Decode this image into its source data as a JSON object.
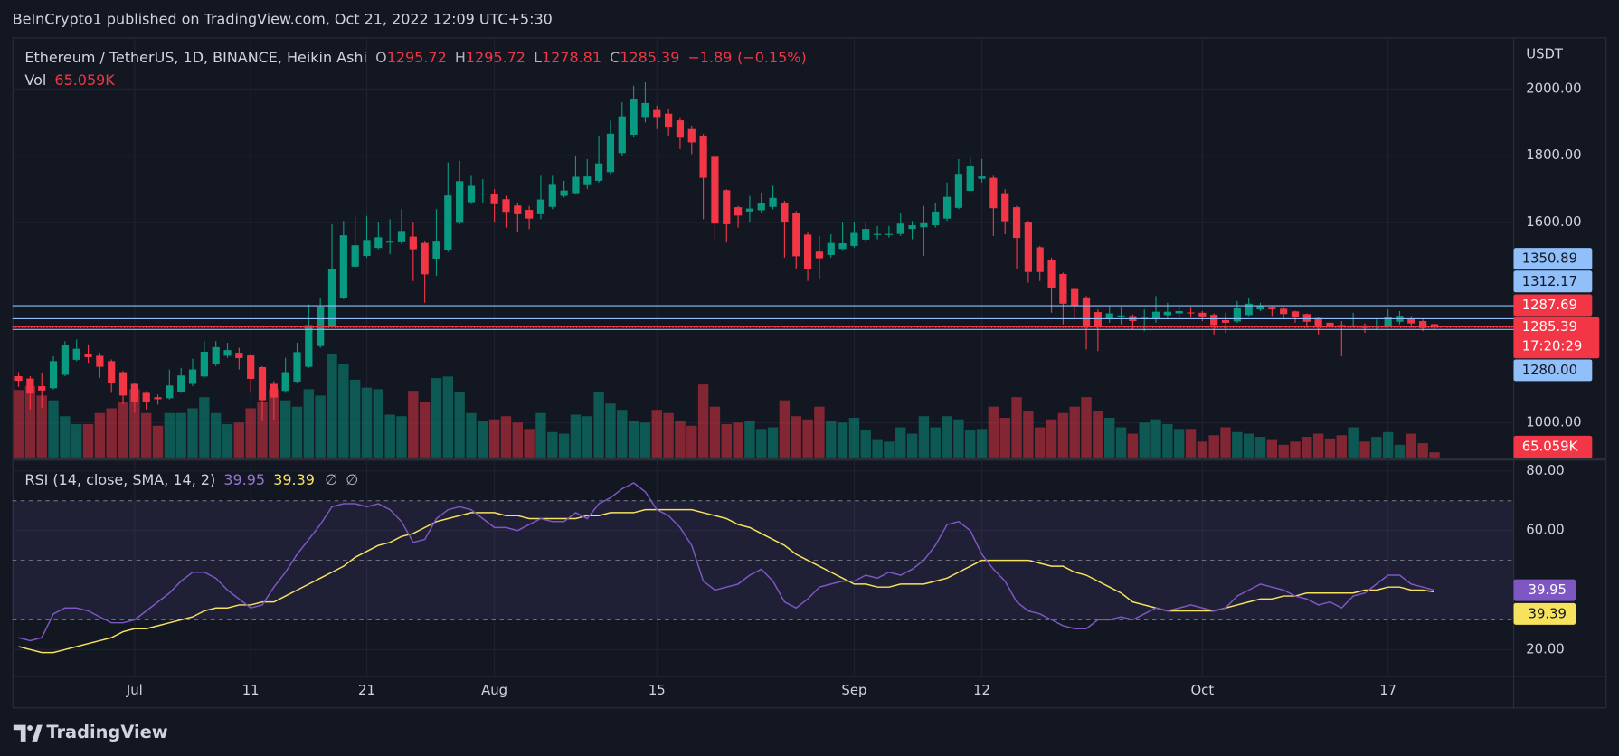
{
  "chart_data": {
    "type": "candlestick",
    "header": "BeInCrypto1 published on TradingView.com, Oct 21, 2022 12:09 UTC+5:30",
    "title": "Ethereum / TetherUS, 1D, BINANCE, Heikin Ashi",
    "ohlc_keys": [
      "O",
      "H",
      "L",
      "C"
    ],
    "change": {
      "value": -1.89,
      "label": "−1.89"
    },
    "change_pct": {
      "value": -0.15,
      "label": "(−0.15%)"
    },
    "currency": "USDT",
    "categories": [
      null,
      null,
      null,
      null,
      null,
      null,
      null,
      null,
      null,
      null,
      "Jul",
      null,
      null,
      null,
      null,
      null,
      null,
      null,
      null,
      null,
      "11",
      null,
      null,
      null,
      null,
      null,
      null,
      null,
      null,
      null,
      "21",
      null,
      null,
      null,
      null,
      null,
      null,
      null,
      null,
      null,
      null,
      "Aug",
      null,
      null,
      null,
      null,
      null,
      null,
      null,
      null,
      null,
      null,
      null,
      null,
      null,
      "15",
      null,
      null,
      null,
      null,
      null,
      null,
      null,
      null,
      null,
      null,
      null,
      null,
      null,
      null,
      null,
      null,
      "Sep",
      null,
      null,
      null,
      null,
      null,
      null,
      null,
      null,
      null,
      null,
      "12",
      null,
      null,
      null,
      null,
      null,
      null,
      null,
      null,
      null,
      null,
      null,
      null,
      null,
      null,
      null,
      null,
      null,
      null,
      "Oct",
      null,
      null,
      null,
      null,
      null,
      null,
      null,
      null,
      null,
      null,
      null,
      null,
      null,
      null,
      null,
      "17",
      null,
      null,
      null,
      null
    ],
    "candles": [
      [
        1140,
        1152,
        1108,
        1126
      ],
      [
        1133,
        1140,
        1040,
        1088
      ],
      [
        1110,
        1150,
        1045,
        1097
      ],
      [
        1104,
        1200,
        1100,
        1185
      ],
      [
        1144,
        1245,
        1140,
        1234
      ],
      [
        1189,
        1250,
        1185,
        1222
      ],
      [
        1205,
        1235,
        1180,
        1197
      ],
      [
        1201,
        1210,
        1135,
        1168
      ],
      [
        1185,
        1190,
        1090,
        1120
      ],
      [
        1152,
        1155,
        1055,
        1082
      ],
      [
        1117,
        1120,
        1030,
        1064
      ],
      [
        1090,
        1095,
        1040,
        1064
      ],
      [
        1077,
        1085,
        1055,
        1071
      ],
      [
        1074,
        1160,
        1070,
        1112
      ],
      [
        1093,
        1165,
        1090,
        1142
      ],
      [
        1117,
        1192,
        1110,
        1160
      ],
      [
        1139,
        1245,
        1135,
        1213
      ],
      [
        1176,
        1245,
        1170,
        1227
      ],
      [
        1201,
        1240,
        1195,
        1218
      ],
      [
        1210,
        1225,
        1160,
        1194
      ],
      [
        1202,
        1205,
        1090,
        1132
      ],
      [
        1167,
        1170,
        1005,
        1068
      ],
      [
        1117,
        1125,
        1010,
        1076
      ],
      [
        1096,
        1195,
        1090,
        1152
      ],
      [
        1124,
        1240,
        1120,
        1212
      ],
      [
        1168,
        1355,
        1165,
        1293
      ],
      [
        1230,
        1375,
        1225,
        1346
      ],
      [
        1288,
        1595,
        1285,
        1460
      ],
      [
        1374,
        1605,
        1370,
        1562
      ],
      [
        1468,
        1620,
        1465,
        1532
      ],
      [
        1500,
        1620,
        1495,
        1548
      ],
      [
        1524,
        1600,
        1520,
        1556
      ],
      [
        1540,
        1610,
        1505,
        1543
      ],
      [
        1541,
        1640,
        1535,
        1575
      ],
      [
        1558,
        1600,
        1425,
        1520
      ],
      [
        1539,
        1545,
        1360,
        1445
      ],
      [
        1492,
        1640,
        1440,
        1543
      ],
      [
        1517,
        1780,
        1512,
        1681
      ],
      [
        1599,
        1785,
        1595,
        1724
      ],
      [
        1661,
        1740,
        1655,
        1710
      ],
      [
        1685,
        1730,
        1660,
        1687
      ],
      [
        1686,
        1700,
        1600,
        1655
      ],
      [
        1670,
        1680,
        1585,
        1632
      ],
      [
        1651,
        1660,
        1570,
        1625
      ],
      [
        1638,
        1650,
        1580,
        1612
      ],
      [
        1625,
        1740,
        1610,
        1669
      ],
      [
        1647,
        1740,
        1640,
        1713
      ],
      [
        1680,
        1725,
        1675,
        1696
      ],
      [
        1688,
        1800,
        1685,
        1737
      ],
      [
        1712,
        1790,
        1700,
        1738
      ],
      [
        1725,
        1860,
        1720,
        1777
      ],
      [
        1751,
        1905,
        1745,
        1866
      ],
      [
        1808,
        1960,
        1800,
        1918
      ],
      [
        1863,
        2010,
        1855,
        1970
      ],
      [
        1916,
        2020,
        1900,
        1958
      ],
      [
        1937,
        1950,
        1880,
        1916
      ],
      [
        1926,
        1940,
        1860,
        1887
      ],
      [
        1906,
        1915,
        1820,
        1854
      ],
      [
        1880,
        1890,
        1805,
        1840
      ],
      [
        1860,
        1865,
        1610,
        1734
      ],
      [
        1797,
        1800,
        1545,
        1597
      ],
      [
        1697,
        1700,
        1540,
        1595
      ],
      [
        1646,
        1650,
        1585,
        1621
      ],
      [
        1633,
        1680,
        1600,
        1642
      ],
      [
        1637,
        1690,
        1630,
        1657
      ],
      [
        1647,
        1710,
        1640,
        1674
      ],
      [
        1660,
        1665,
        1495,
        1600
      ],
      [
        1630,
        1635,
        1460,
        1499
      ],
      [
        1564,
        1570,
        1425,
        1462
      ],
      [
        1513,
        1560,
        1430,
        1493
      ],
      [
        1503,
        1565,
        1495,
        1539
      ],
      [
        1521,
        1600,
        1515,
        1538
      ],
      [
        1530,
        1600,
        1525,
        1569
      ],
      [
        1549,
        1600,
        1540,
        1581
      ],
      [
        1565,
        1590,
        1550,
        1566
      ],
      [
        1565,
        1590,
        1555,
        1566
      ],
      [
        1566,
        1630,
        1560,
        1597
      ],
      [
        1581,
        1605,
        1550,
        1592
      ],
      [
        1586,
        1650,
        1500,
        1598
      ],
      [
        1592,
        1660,
        1585,
        1633
      ],
      [
        1612,
        1720,
        1605,
        1677
      ],
      [
        1644,
        1790,
        1640,
        1746
      ],
      [
        1695,
        1795,
        1690,
        1768
      ],
      [
        1731,
        1790,
        1720,
        1738
      ],
      [
        1734,
        1740,
        1560,
        1643
      ],
      [
        1688,
        1700,
        1565,
        1604
      ],
      [
        1646,
        1650,
        1460,
        1554
      ],
      [
        1600,
        1605,
        1420,
        1452
      ],
      [
        1526,
        1530,
        1425,
        1452
      ],
      [
        1489,
        1495,
        1330,
        1404
      ],
      [
        1446,
        1450,
        1295,
        1357
      ],
      [
        1401,
        1405,
        1310,
        1351
      ],
      [
        1376,
        1380,
        1220,
        1289
      ],
      [
        1332,
        1340,
        1215,
        1291
      ],
      [
        1311,
        1350,
        1300,
        1328
      ],
      [
        1319,
        1345,
        1295,
        1322
      ],
      [
        1320,
        1325,
        1280,
        1305
      ],
      [
        1312,
        1340,
        1275,
        1315
      ],
      [
        1313,
        1380,
        1300,
        1333
      ],
      [
        1323,
        1360,
        1310,
        1333
      ],
      [
        1328,
        1350,
        1315,
        1335
      ],
      [
        1331,
        1345,
        1315,
        1330
      ],
      [
        1330,
        1335,
        1305,
        1319
      ],
      [
        1324,
        1328,
        1265,
        1293
      ],
      [
        1308,
        1330,
        1270,
        1300
      ],
      [
        1304,
        1365,
        1300,
        1343
      ],
      [
        1323,
        1375,
        1320,
        1357
      ],
      [
        1340,
        1360,
        1335,
        1351
      ],
      [
        1345,
        1350,
        1320,
        1340
      ],
      [
        1342,
        1345,
        1310,
        1326
      ],
      [
        1334,
        1336,
        1300,
        1318
      ],
      [
        1326,
        1328,
        1285,
        1303
      ],
      [
        1314,
        1316,
        1265,
        1286
      ],
      [
        1300,
        1305,
        1280,
        1287
      ],
      [
        1293,
        1305,
        1200,
        1291
      ],
      [
        1292,
        1330,
        1285,
        1292
      ],
      [
        1292,
        1298,
        1270,
        1285
      ],
      [
        1288,
        1310,
        1280,
        1290
      ],
      [
        1289,
        1340,
        1285,
        1318
      ],
      [
        1303,
        1335,
        1295,
        1321
      ],
      [
        1312,
        1320,
        1285,
        1298
      ],
      [
        1305,
        1310,
        1275,
        1284
      ],
      [
        1295.72,
        1295.72,
        1278.81,
        1285.39
      ]
    ],
    "up_color": "#089981",
    "down_color": "#f23645",
    "ylim": [
      893.4,
      2154.6
    ],
    "yticks": [
      {
        "value": 1000,
        "label": "1000.00"
      },
      {
        "value": 1600,
        "label": "1600.00"
      },
      {
        "value": 1800,
        "label": "1800.00"
      },
      {
        "value": 2000,
        "label": "2000.00"
      }
    ],
    "grid": true,
    "levels": [
      {
        "value": 1350.89,
        "color": "#90bff9"
      },
      {
        "value": 1312.17,
        "color": "#90bff9"
      },
      {
        "value": 1287.69,
        "color": "#f23645"
      },
      {
        "value": 1280,
        "label": "1280.00",
        "color": "#90bff9"
      }
    ],
    "countdown": "17:20:29",
    "volume": {
      "name": "Vol",
      "values": [
        850,
        900,
        780,
        720,
        520,
        420,
        420,
        560,
        620,
        700,
        860,
        560,
        400,
        560,
        560,
        620,
        760,
        560,
        420,
        440,
        620,
        700,
        860,
        720,
        640,
        860,
        780,
        1300,
        1180,
        980,
        880,
        860,
        540,
        520,
        840,
        700,
        1000,
        1020,
        820,
        560,
        460,
        480,
        520,
        440,
        360,
        560,
        320,
        300,
        540,
        520,
        820,
        680,
        600,
        460,
        440,
        600,
        560,
        460,
        400,
        920,
        640,
        420,
        440,
        460,
        360,
        380,
        720,
        520,
        480,
        640,
        460,
        440,
        500,
        340,
        220,
        200,
        380,
        300,
        520,
        380,
        520,
        480,
        340,
        360,
        640,
        500,
        760,
        580,
        380,
        480,
        560,
        640,
        760,
        580,
        500,
        380,
        300,
        440,
        480,
        420,
        360,
        360,
        200,
        280,
        380,
        320,
        300,
        260,
        220,
        160,
        200,
        260,
        300,
        240,
        280,
        380,
        200,
        260,
        320,
        160,
        300,
        180,
        65.059
      ],
      "value_labels": {
        "122": "65.059K"
      }
    },
    "rsi": {
      "name": "RSI (14, close, SMA, 14, 2)",
      "color": "#7e57c2",
      "values": [
        24,
        23,
        24,
        32,
        34,
        34,
        33,
        31,
        29,
        29,
        30,
        33,
        36,
        39,
        43,
        46,
        46,
        44,
        40,
        37,
        34,
        35,
        41,
        46,
        52,
        57,
        62,
        68,
        69,
        69,
        68,
        69,
        67,
        63,
        56,
        57,
        64,
        67,
        68,
        67,
        64,
        61,
        61,
        60,
        62,
        64,
        63,
        63,
        66,
        64,
        69,
        71,
        74,
        76,
        73,
        67,
        65,
        61,
        55,
        43,
        40,
        41,
        42,
        45,
        47,
        43,
        36,
        34,
        37,
        41,
        42,
        43,
        43,
        45,
        44,
        46,
        45,
        47,
        50,
        55,
        62,
        63,
        60,
        52,
        47,
        43,
        36,
        33,
        32,
        30,
        28,
        27,
        27,
        30,
        30,
        31,
        30,
        32,
        34,
        33,
        34,
        35,
        34,
        33,
        34,
        38,
        40,
        42,
        41,
        40,
        38,
        37,
        35,
        36,
        34,
        38,
        39,
        42,
        45,
        45,
        42,
        41,
        39.95
      ],
      "ylim": [
        11,
        83.5
      ],
      "yticks": [
        {
          "value": 80,
          "label": "80.00"
        },
        {
          "value": 60,
          "label": "60.00"
        },
        {
          "value": 20,
          "label": "20.00"
        }
      ],
      "bands": [
        70,
        50,
        30
      ],
      "extra": [
        "∅",
        "∅"
      ]
    },
    "rsi_sma": {
      "color": "#f7e25e",
      "values": [
        21,
        20,
        19,
        19,
        20,
        21,
        22,
        23,
        24,
        26,
        27,
        27,
        28,
        29,
        30,
        31,
        33,
        34,
        34,
        35,
        35,
        36,
        36,
        38,
        40,
        42,
        44,
        46,
        48,
        51,
        53,
        55,
        56,
        58,
        59,
        61,
        63,
        64,
        65,
        66,
        66,
        66,
        65,
        65,
        64,
        64,
        64,
        64,
        64,
        65,
        65,
        66,
        66,
        66,
        67,
        67,
        67,
        67,
        67,
        66,
        65,
        64,
        62,
        61,
        59,
        57,
        55,
        52,
        50,
        48,
        46,
        44,
        42,
        42,
        41,
        41,
        42,
        42,
        42,
        43,
        44,
        46,
        48,
        50,
        50,
        50,
        50,
        50,
        49,
        48,
        48,
        46,
        45,
        43,
        41,
        39,
        36,
        35,
        34,
        33,
        33,
        33,
        33,
        33,
        34,
        35,
        36,
        37,
        37,
        38,
        38,
        39,
        39,
        39,
        39,
        39,
        40,
        40,
        41,
        41,
        40,
        40,
        39.39
      ]
    },
    "brand": "TradingView"
  }
}
